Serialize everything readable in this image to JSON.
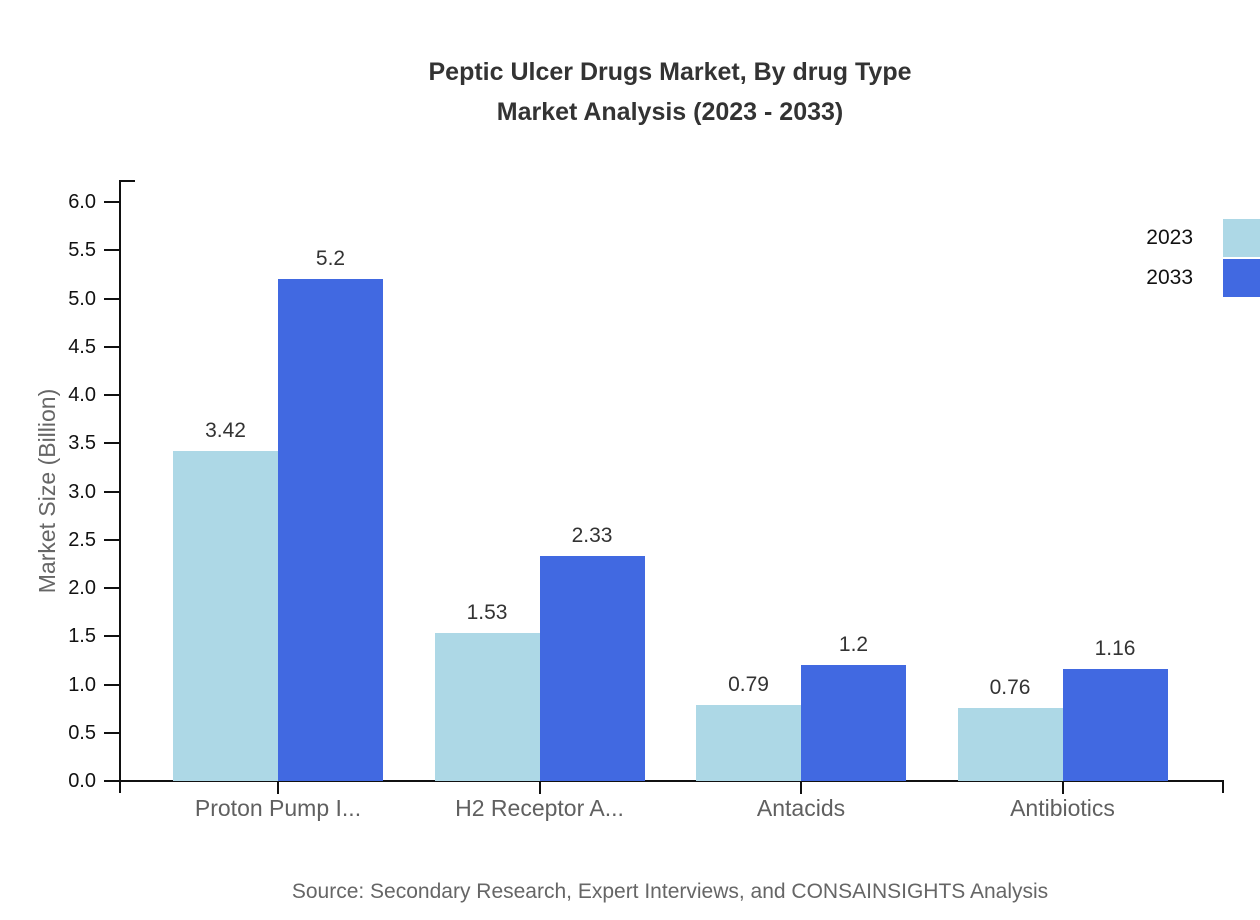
{
  "title": {
    "line1": "Peptic Ulcer Drugs Market, By drug Type",
    "line2": "Market Analysis (2023 - 2033)"
  },
  "source": "Source: Secondary Research, Expert Interviews, and CONSAINSIGHTS Analysis",
  "chart_data": {
    "type": "bar",
    "title": "Peptic Ulcer Drugs Market, By drug Type Market Analysis (2023 - 2033)",
    "categories": [
      "Proton Pump I...",
      "H2 Receptor A...",
      "Antacids",
      "Antibiotics"
    ],
    "series": [
      {
        "name": "2023",
        "color": "#ADD8E6",
        "values": [
          3.42,
          1.53,
          0.79,
          0.76
        ]
      },
      {
        "name": "2033",
        "color": "#4169E1",
        "values": [
          5.2,
          2.33,
          1.2,
          1.16
        ]
      }
    ],
    "value_labels": [
      "3.42",
      "1.53",
      "0.79",
      "0.76",
      "5.2",
      "2.33",
      "1.2",
      "1.16"
    ],
    "xlabel": "",
    "ylabel": "Market Size (Billion)",
    "ylim": [
      0,
      6
    ],
    "ytick_step": 0.5,
    "ytick_labels": [
      "0.0",
      "0.5",
      "1.0",
      "1.5",
      "2.0",
      "2.5",
      "3.0",
      "3.5",
      "4.0",
      "4.5",
      "5.0",
      "5.5",
      "6.0"
    ],
    "grid": false,
    "legend_position": "right-top",
    "legend": [
      {
        "label": "2023",
        "color": "#ADD8E6"
      },
      {
        "label": "2033",
        "color": "#4169E1"
      }
    ]
  },
  "colors": {
    "series_2023": "#ADD8E6",
    "series_2033": "#4169E1",
    "axis": "#111111",
    "title_text": "#333333",
    "muted_text": "#666666"
  }
}
